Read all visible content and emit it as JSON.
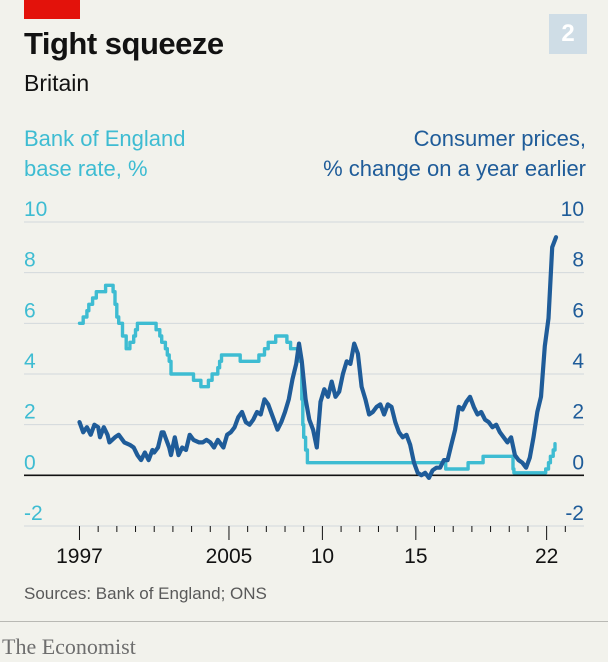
{
  "header": {
    "title": "Tight squeeze",
    "subtitle": "Britain",
    "chart_number": "2"
  },
  "source": "Sources: Bank of England; ONS",
  "brand": "The Economist",
  "colors": {
    "base_rate": "#3ebcd2",
    "cpi": "#1f5c99",
    "accent_red": "#e3120b"
  },
  "chart_data": {
    "type": "line",
    "left_axis_label": [
      "Bank of England",
      "base rate, %"
    ],
    "right_axis_label": [
      "Consumer prices,",
      "% change on a year earlier"
    ],
    "ylim": [
      -2,
      10
    ],
    "y_ticks": [
      "10",
      "8",
      "6",
      "4",
      "2",
      "0",
      "-2"
    ],
    "xlim": [
      1996.6,
      2024.0
    ],
    "x_ticks": [
      {
        "value": 1997,
        "label": "1997"
      },
      {
        "value": 2005,
        "label": "2005"
      },
      {
        "value": 2010,
        "label": "10"
      },
      {
        "value": 2015,
        "label": "15"
      },
      {
        "value": 2022,
        "label": "22"
      }
    ],
    "series": [
      {
        "name": "Bank of England base rate, %",
        "axis": "left",
        "step": true,
        "points": [
          [
            1997.0,
            6.0
          ],
          [
            1997.2,
            6.25
          ],
          [
            1997.4,
            6.5
          ],
          [
            1997.5,
            6.75
          ],
          [
            1997.7,
            7.0
          ],
          [
            1997.9,
            7.25
          ],
          [
            1998.3,
            7.25
          ],
          [
            1998.4,
            7.5
          ],
          [
            1998.8,
            7.25
          ],
          [
            1998.9,
            6.75
          ],
          [
            1999.0,
            6.25
          ],
          [
            1999.1,
            6.0
          ],
          [
            1999.3,
            5.5
          ],
          [
            1999.5,
            5.25
          ],
          [
            1999.5,
            5.0
          ],
          [
            1999.7,
            5.25
          ],
          [
            1999.9,
            5.5
          ],
          [
            2000.0,
            5.75
          ],
          [
            2000.1,
            6.0
          ],
          [
            2001.1,
            5.75
          ],
          [
            2001.3,
            5.5
          ],
          [
            2001.4,
            5.25
          ],
          [
            2001.6,
            5.0
          ],
          [
            2001.7,
            4.75
          ],
          [
            2001.8,
            4.5
          ],
          [
            2001.9,
            4.0
          ],
          [
            2003.1,
            3.75
          ],
          [
            2003.5,
            3.5
          ],
          [
            2003.9,
            3.75
          ],
          [
            2004.1,
            4.0
          ],
          [
            2004.4,
            4.25
          ],
          [
            2004.5,
            4.5
          ],
          [
            2004.6,
            4.75
          ],
          [
            2005.6,
            4.5
          ],
          [
            2006.6,
            4.75
          ],
          [
            2006.9,
            5.0
          ],
          [
            2007.1,
            5.25
          ],
          [
            2007.5,
            5.5
          ],
          [
            2007.9,
            5.5
          ],
          [
            2008.1,
            5.25
          ],
          [
            2008.3,
            5.0
          ],
          [
            2008.8,
            4.5
          ],
          [
            2008.9,
            3.0
          ],
          [
            2008.95,
            2.0
          ],
          [
            2009.0,
            1.5
          ],
          [
            2009.1,
            1.0
          ],
          [
            2009.2,
            0.5
          ],
          [
            2016.6,
            0.25
          ],
          [
            2017.8,
            0.5
          ],
          [
            2018.6,
            0.75
          ],
          [
            2020.2,
            0.25
          ],
          [
            2020.25,
            0.1
          ],
          [
            2021.95,
            0.25
          ],
          [
            2022.1,
            0.5
          ],
          [
            2022.2,
            0.75
          ],
          [
            2022.35,
            1.0
          ],
          [
            2022.45,
            1.25
          ]
        ]
      },
      {
        "name": "Consumer prices, % change on a year earlier",
        "axis": "right",
        "step": false,
        "points": [
          [
            1997.0,
            2.1
          ],
          [
            1997.2,
            1.7
          ],
          [
            1997.4,
            1.9
          ],
          [
            1997.6,
            1.6
          ],
          [
            1997.8,
            2.0
          ],
          [
            1998.0,
            1.9
          ],
          [
            1998.1,
            1.5
          ],
          [
            1998.3,
            1.9
          ],
          [
            1998.5,
            1.6
          ],
          [
            1998.6,
            1.3
          ],
          [
            1998.9,
            1.5
          ],
          [
            1999.1,
            1.6
          ],
          [
            1999.4,
            1.3
          ],
          [
            1999.7,
            1.2
          ],
          [
            1999.9,
            1.1
          ],
          [
            2000.1,
            0.8
          ],
          [
            2000.3,
            0.6
          ],
          [
            2000.5,
            0.9
          ],
          [
            2000.7,
            0.6
          ],
          [
            2000.9,
            1.0
          ],
          [
            2001.0,
            0.9
          ],
          [
            2001.2,
            1.1
          ],
          [
            2001.4,
            1.7
          ],
          [
            2001.5,
            1.7
          ],
          [
            2001.6,
            1.5
          ],
          [
            2001.8,
            1.1
          ],
          [
            2001.9,
            0.8
          ],
          [
            2002.1,
            1.5
          ],
          [
            2002.3,
            0.8
          ],
          [
            2002.5,
            1.1
          ],
          [
            2002.7,
            1.0
          ],
          [
            2002.9,
            1.6
          ],
          [
            2003.1,
            1.4
          ],
          [
            2003.4,
            1.3
          ],
          [
            2003.6,
            1.3
          ],
          [
            2003.8,
            1.4
          ],
          [
            2004.0,
            1.3
          ],
          [
            2004.2,
            1.1
          ],
          [
            2004.4,
            1.4
          ],
          [
            2004.7,
            1.1
          ],
          [
            2004.9,
            1.6
          ],
          [
            2005.1,
            1.7
          ],
          [
            2005.3,
            1.9
          ],
          [
            2005.5,
            2.3
          ],
          [
            2005.7,
            2.5
          ],
          [
            2005.9,
            2.1
          ],
          [
            2006.1,
            2.0
          ],
          [
            2006.3,
            2.2
          ],
          [
            2006.5,
            2.5
          ],
          [
            2006.7,
            2.4
          ],
          [
            2006.9,
            3.0
          ],
          [
            2007.1,
            2.8
          ],
          [
            2007.3,
            2.4
          ],
          [
            2007.6,
            1.8
          ],
          [
            2007.8,
            2.1
          ],
          [
            2008.0,
            2.5
          ],
          [
            2008.2,
            3.0
          ],
          [
            2008.4,
            3.8
          ],
          [
            2008.6,
            4.4
          ],
          [
            2008.75,
            5.2
          ],
          [
            2008.9,
            4.5
          ],
          [
            2009.1,
            3.0
          ],
          [
            2009.3,
            2.2
          ],
          [
            2009.5,
            1.8
          ],
          [
            2009.7,
            1.1
          ],
          [
            2009.9,
            2.9
          ],
          [
            2010.1,
            3.4
          ],
          [
            2010.3,
            3.1
          ],
          [
            2010.5,
            3.7
          ],
          [
            2010.7,
            3.1
          ],
          [
            2010.9,
            3.3
          ],
          [
            2011.1,
            4.0
          ],
          [
            2011.3,
            4.5
          ],
          [
            2011.5,
            4.4
          ],
          [
            2011.7,
            5.2
          ],
          [
            2011.9,
            4.8
          ],
          [
            2012.1,
            3.5
          ],
          [
            2012.3,
            3.0
          ],
          [
            2012.5,
            2.4
          ],
          [
            2012.7,
            2.5
          ],
          [
            2012.9,
            2.7
          ],
          [
            2013.1,
            2.8
          ],
          [
            2013.3,
            2.4
          ],
          [
            2013.5,
            2.8
          ],
          [
            2013.7,
            2.7
          ],
          [
            2013.9,
            2.1
          ],
          [
            2014.1,
            1.7
          ],
          [
            2014.3,
            1.5
          ],
          [
            2014.5,
            1.6
          ],
          [
            2014.7,
            1.2
          ],
          [
            2014.9,
            0.5
          ],
          [
            2015.1,
            0.1
          ],
          [
            2015.3,
            0.0
          ],
          [
            2015.5,
            0.1
          ],
          [
            2015.7,
            -0.1
          ],
          [
            2015.9,
            0.2
          ],
          [
            2016.1,
            0.3
          ],
          [
            2016.3,
            0.3
          ],
          [
            2016.5,
            0.6
          ],
          [
            2016.7,
            0.6
          ],
          [
            2016.9,
            1.2
          ],
          [
            2017.1,
            1.8
          ],
          [
            2017.3,
            2.7
          ],
          [
            2017.5,
            2.6
          ],
          [
            2017.7,
            2.9
          ],
          [
            2017.9,
            3.1
          ],
          [
            2018.1,
            2.7
          ],
          [
            2018.3,
            2.4
          ],
          [
            2018.5,
            2.5
          ],
          [
            2018.7,
            2.2
          ],
          [
            2018.9,
            2.1
          ],
          [
            2019.1,
            1.9
          ],
          [
            2019.3,
            2.0
          ],
          [
            2019.5,
            1.7
          ],
          [
            2019.7,
            1.5
          ],
          [
            2019.9,
            1.3
          ],
          [
            2020.1,
            1.5
          ],
          [
            2020.3,
            0.8
          ],
          [
            2020.5,
            0.6
          ],
          [
            2020.7,
            0.5
          ],
          [
            2020.9,
            0.3
          ],
          [
            2021.1,
            0.7
          ],
          [
            2021.3,
            1.5
          ],
          [
            2021.5,
            2.5
          ],
          [
            2021.7,
            3.1
          ],
          [
            2021.9,
            5.1
          ],
          [
            2022.1,
            6.2
          ],
          [
            2022.3,
            9.0
          ],
          [
            2022.5,
            9.4
          ]
        ]
      }
    ]
  }
}
